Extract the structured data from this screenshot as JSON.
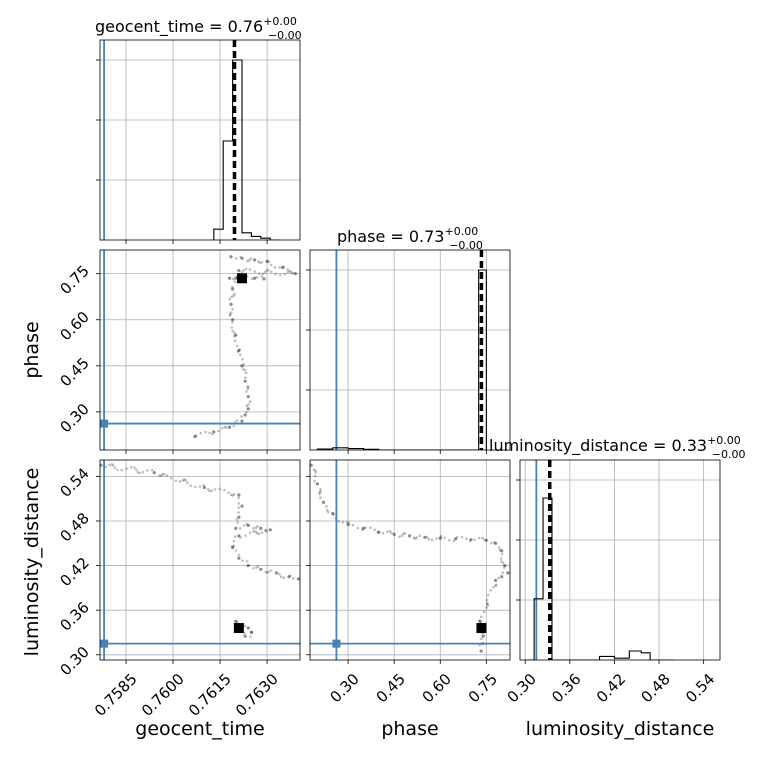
{
  "chart_data": {
    "type": "corner",
    "parameters": [
      "geocent_time",
      "phase",
      "luminosity_distance"
    ],
    "axis_labels": {
      "geocent_time": "geocent_time",
      "phase": "phase",
      "luminosity_distance": "luminosity_distance"
    },
    "titles": {
      "geocent_time": {
        "label": "geocent_time = 0.76",
        "upper": "+0.00",
        "lower": "−0.00"
      },
      "phase": {
        "label": "phase = 0.73",
        "upper": "+0.00",
        "lower": "−0.00"
      },
      "luminosity_distance": {
        "label": "luminosity_distance = 0.33",
        "upper": "+0.00",
        "lower": "−0.00"
      }
    },
    "ranges": {
      "geocent_time": [
        0.75767,
        0.76405
      ],
      "phase": [
        0.176,
        0.827
      ],
      "luminosity_distance": [
        0.293,
        0.562
      ]
    },
    "ticks": {
      "geocent_time": [
        0.7585,
        0.76,
        0.7615,
        0.763
      ],
      "phase": [
        0.3,
        0.45,
        0.6,
        0.75
      ],
      "luminosity_distance": [
        0.3,
        0.36,
        0.42,
        0.48,
        0.54
      ]
    },
    "tick_labels": {
      "geocent_time": [
        "0.7585",
        "0.7600",
        "0.7615",
        "0.7630"
      ],
      "phase": [
        "0.30",
        "0.45",
        "0.60",
        "0.75"
      ],
      "luminosity_distance": [
        "0.30",
        "0.36",
        "0.42",
        "0.48",
        "0.54"
      ]
    },
    "truths": {
      "geocent_time": 0.7578,
      "phase": 0.262,
      "luminosity_distance": 0.315
    },
    "medians": {
      "geocent_time": 0.76196,
      "phase": 0.734,
      "luminosity_distance": 0.333
    },
    "histograms": {
      "geocent_time": {
        "edges": [
          0.7613,
          0.7616,
          0.7619,
          0.7622,
          0.7625,
          0.7628,
          0.7631,
          0.7634
        ],
        "counts": [
          0.06,
          0.55,
          1.0,
          0.04,
          0.02,
          0.01,
          0.0
        ]
      },
      "phase": {
        "edges": [
          0.2,
          0.25,
          0.3,
          0.35,
          0.4,
          0.45,
          0.5,
          0.55,
          0.6,
          0.65,
          0.7,
          0.725,
          0.75
        ],
        "counts": [
          0.005,
          0.012,
          0.008,
          0.004,
          0.0,
          0.0,
          0.0,
          0.0,
          0.0,
          0.0,
          0.0,
          1.0
        ]
      },
      "luminosity_distance": {
        "edges": [
          0.3,
          0.312,
          0.324,
          0.336,
          0.348,
          0.36,
          0.384,
          0.4,
          0.42,
          0.44,
          0.456,
          0.468,
          0.48,
          0.5
        ],
        "counts": [
          0.0,
          0.34,
          0.9,
          0.0,
          0.0,
          0.0,
          0.0,
          0.02,
          0.01,
          0.05,
          0.04,
          0.0,
          0.0
        ]
      }
    },
    "scatter": {
      "phase_vs_geocent_time": [
        [
          0.76185,
          0.805
        ],
        [
          0.7622,
          0.8
        ],
        [
          0.7626,
          0.795
        ],
        [
          0.763,
          0.79
        ],
        [
          0.7635,
          0.77
        ],
        [
          0.7639,
          0.75
        ],
        [
          0.7621,
          0.76
        ],
        [
          0.7619,
          0.7
        ],
        [
          0.76185,
          0.65
        ],
        [
          0.7619,
          0.6
        ],
        [
          0.762,
          0.55
        ],
        [
          0.7621,
          0.5
        ],
        [
          0.7622,
          0.45
        ],
        [
          0.7623,
          0.4
        ],
        [
          0.7624,
          0.35
        ],
        [
          0.7624,
          0.31
        ],
        [
          0.7623,
          0.29
        ],
        [
          0.7622,
          0.27
        ],
        [
          0.7618,
          0.25
        ],
        [
          0.7613,
          0.235
        ],
        [
          0.7607,
          0.22
        ],
        [
          0.7618,
          0.735
        ],
        [
          0.762,
          0.735
        ],
        [
          0.7622,
          0.738
        ],
        [
          0.7626,
          0.735
        ],
        [
          0.7629,
          0.733
        ]
      ],
      "luminosity_distance_vs_geocent_time": [
        [
          0.7577,
          0.555
        ],
        [
          0.7594,
          0.545
        ],
        [
          0.761,
          0.525
        ],
        [
          0.7621,
          0.515
        ],
        [
          0.7622,
          0.5
        ],
        [
          0.7621,
          0.485
        ],
        [
          0.762,
          0.47
        ],
        [
          0.7624,
          0.474
        ],
        [
          0.7628,
          0.47
        ],
        [
          0.7631,
          0.468
        ],
        [
          0.7621,
          0.46
        ],
        [
          0.7619,
          0.445
        ],
        [
          0.7621,
          0.43
        ],
        [
          0.7624,
          0.42
        ],
        [
          0.7628,
          0.415
        ],
        [
          0.7633,
          0.41
        ],
        [
          0.7637,
          0.405
        ],
        [
          0.764,
          0.402
        ],
        [
          0.7622,
          0.34
        ],
        [
          0.7624,
          0.336
        ],
        [
          0.7625,
          0.33
        ],
        [
          0.7623,
          0.325
        ],
        [
          0.7622,
          0.34
        ],
        [
          0.762,
          0.345
        ]
      ],
      "luminosity_distance_vs_phase": [
        [
          0.18,
          0.555
        ],
        [
          0.2,
          0.53
        ],
        [
          0.22,
          0.505
        ],
        [
          0.25,
          0.49
        ],
        [
          0.3,
          0.475
        ],
        [
          0.35,
          0.47
        ],
        [
          0.4,
          0.465
        ],
        [
          0.45,
          0.462
        ],
        [
          0.5,
          0.46
        ],
        [
          0.55,
          0.458
        ],
        [
          0.6,
          0.457
        ],
        [
          0.65,
          0.456
        ],
        [
          0.7,
          0.455
        ],
        [
          0.75,
          0.454
        ],
        [
          0.78,
          0.45
        ],
        [
          0.8,
          0.44
        ],
        [
          0.81,
          0.42
        ],
        [
          0.82,
          0.41
        ],
        [
          0.8,
          0.405
        ],
        [
          0.78,
          0.4
        ],
        [
          0.73,
          0.345
        ],
        [
          0.735,
          0.335
        ],
        [
          0.74,
          0.325
        ],
        [
          0.738,
          0.315
        ],
        [
          0.733,
          0.305
        ]
      ]
    },
    "medians_2d": {
      "phase_vs_geocent_time": [
        0.7622,
        0.735
      ],
      "luminosity_distance_vs_geocent_time": [
        0.7621,
        0.336
      ],
      "luminosity_distance_vs_phase": [
        0.734,
        0.336
      ]
    },
    "colors": {
      "truth": "#4682b4",
      "hist": "#000000",
      "median": "#000000",
      "scatter": "#000000"
    },
    "grid": true
  }
}
